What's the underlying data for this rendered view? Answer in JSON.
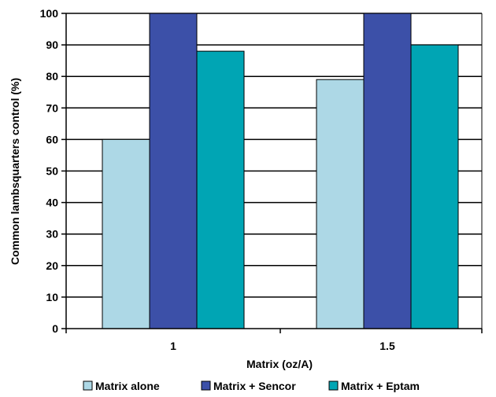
{
  "chart_data": {
    "type": "bar",
    "categories": [
      "1",
      "1.5"
    ],
    "series": [
      {
        "name": "Matrix alone",
        "color": "#add8e6",
        "values": [
          60,
          79
        ]
      },
      {
        "name": "Matrix + Sencor",
        "color": "#3c50a8",
        "values": [
          100,
          100
        ]
      },
      {
        "name": "Matrix + Eptam",
        "color": "#00a5b4",
        "values": [
          88,
          90
        ]
      }
    ],
    "title": "",
    "xlabel": "Matrix (oz/A)",
    "ylabel": "Common lambsquarters control (%)",
    "ylim": [
      0,
      100
    ],
    "yticks": [
      0,
      10,
      20,
      30,
      40,
      50,
      60,
      70,
      80,
      90,
      100
    ],
    "grid": true,
    "legend_position": "bottom"
  }
}
